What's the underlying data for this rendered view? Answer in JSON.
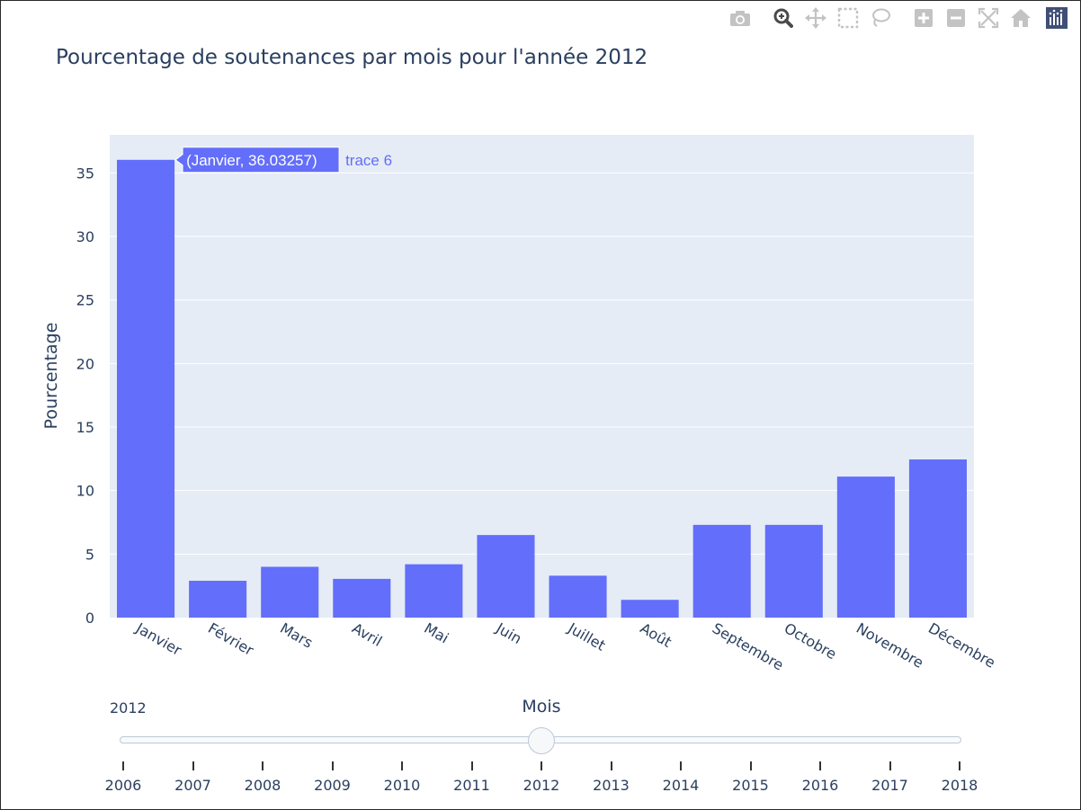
{
  "chart_data": {
    "type": "bar",
    "title": "Pourcentage de soutenances par mois pour l'année 2012",
    "xlabel": "Mois",
    "ylabel": "Pourcentage",
    "categories": [
      "Janvier",
      "Février",
      "Mars",
      "Avril",
      "Mai",
      "Juin",
      "Juillet",
      "Août",
      "Septembre",
      "Octobre",
      "Novembre",
      "Décembre"
    ],
    "series": [
      {
        "name": "trace 6",
        "values": [
          36.03257,
          2.9,
          4.0,
          3.05,
          4.2,
          6.5,
          3.3,
          1.4,
          7.3,
          7.3,
          11.1,
          12.45
        ]
      }
    ],
    "ylim": [
      0,
      38
    ],
    "yticks": [
      0,
      5,
      10,
      15,
      20,
      25,
      30,
      35
    ],
    "grid": true,
    "bar_color": "#636efa",
    "plot_bg": "#e5ecf6",
    "hover": {
      "label": "(Janvier, 36.03257)",
      "trace": "trace 6",
      "category_index": 0
    }
  },
  "slider": {
    "current_label": "2012",
    "steps": [
      "2006",
      "2007",
      "2008",
      "2009",
      "2010",
      "2011",
      "2012",
      "2013",
      "2014",
      "2015",
      "2016",
      "2017",
      "2018"
    ],
    "active_index": 6
  },
  "modebar": {
    "icons": [
      "camera-icon",
      "zoom-icon",
      "pan-icon",
      "box-select-icon",
      "lasso-select-icon",
      "zoom-in-icon",
      "zoom-out-icon",
      "autoscale-icon",
      "reset-axes-icon",
      "plotly-logo-icon"
    ]
  }
}
